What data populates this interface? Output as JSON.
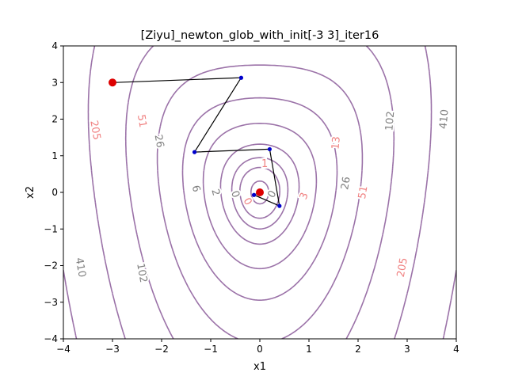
{
  "chart_data": {
    "type": "line",
    "title": "[Ziyu]_newton_glob_with_init[-3  3]_iter16",
    "xlabel": "x1",
    "ylabel": "x2",
    "xlim": [
      -4,
      4
    ],
    "ylim": [
      -4,
      4
    ],
    "xticks": [
      "−4",
      "−3",
      "−2",
      "−1",
      "0",
      "1",
      "2",
      "3",
      "4"
    ],
    "yticks": [
      "−4",
      "−3",
      "−2",
      "−1",
      "0",
      "1",
      "2",
      "3",
      "4"
    ],
    "grid": false,
    "contour_color": "#9b72a8",
    "path_color": "#000000",
    "iterate_color": "#0000cc",
    "endpoint_color": "#dd0000",
    "contour_levels": [
      0.3,
      1.5,
      3,
      6,
      13,
      26,
      51,
      102,
      205,
      410
    ],
    "contour_labels": [
      {
        "text": "0",
        "x": -0.5,
        "y": -0.05,
        "rotation": 70,
        "color": "#808080"
      },
      {
        "text": "0",
        "x": -0.25,
        "y": -0.25,
        "rotation": 60,
        "color": "#f08080"
      },
      {
        "text": "0",
        "x": 0.25,
        "y": -0.05,
        "rotation": -60,
        "color": "#808080"
      },
      {
        "text": "1",
        "x": 0.1,
        "y": 0.78,
        "rotation": 0,
        "color": "#f08080"
      },
      {
        "text": "2",
        "x": -0.9,
        "y": 0.0,
        "rotation": 75,
        "color": "#808080"
      },
      {
        "text": "3",
        "x": 0.9,
        "y": -0.1,
        "rotation": -70,
        "color": "#f08080"
      },
      {
        "text": "6",
        "x": -1.3,
        "y": 0.1,
        "rotation": 75,
        "color": "#808080"
      },
      {
        "text": "13",
        "x": 1.55,
        "y": 1.35,
        "rotation": -85,
        "color": "#f08080"
      },
      {
        "text": "26",
        "x": -2.05,
        "y": 1.4,
        "rotation": 80,
        "color": "#808080"
      },
      {
        "text": "26",
        "x": 1.75,
        "y": 0.25,
        "rotation": -80,
        "color": "#808080"
      },
      {
        "text": "51",
        "x": -2.4,
        "y": 1.95,
        "rotation": 80,
        "color": "#f08080"
      },
      {
        "text": "51",
        "x": 2.1,
        "y": 0.0,
        "rotation": -80,
        "color": "#f08080"
      },
      {
        "text": "102",
        "x": 2.65,
        "y": 1.95,
        "rotation": -85,
        "color": "#808080"
      },
      {
        "text": "102",
        "x": -2.4,
        "y": -2.2,
        "rotation": 80,
        "color": "#808080"
      },
      {
        "text": "205",
        "x": -3.35,
        "y": 1.7,
        "rotation": 80,
        "color": "#f08080"
      },
      {
        "text": "205",
        "x": 2.9,
        "y": -2.05,
        "rotation": -80,
        "color": "#f08080"
      },
      {
        "text": "410",
        "x": 3.75,
        "y": 2.0,
        "rotation": -85,
        "color": "#808080"
      },
      {
        "text": "410",
        "x": -3.65,
        "y": -2.05,
        "rotation": 80,
        "color": "#808080"
      }
    ],
    "path": [
      {
        "x": -3.0,
        "y": 3.0
      },
      {
        "x": -0.38,
        "y": 3.13
      },
      {
        "x": -1.33,
        "y": 1.1
      },
      {
        "x": 0.2,
        "y": 1.18
      },
      {
        "x": 0.4,
        "y": -0.37
      },
      {
        "x": -0.12,
        "y": -0.07
      },
      {
        "x": 0.0,
        "y": 0.0
      }
    ],
    "start": {
      "x": -3.0,
      "y": 3.0
    },
    "end": {
      "x": 0.0,
      "y": 0.0
    }
  }
}
